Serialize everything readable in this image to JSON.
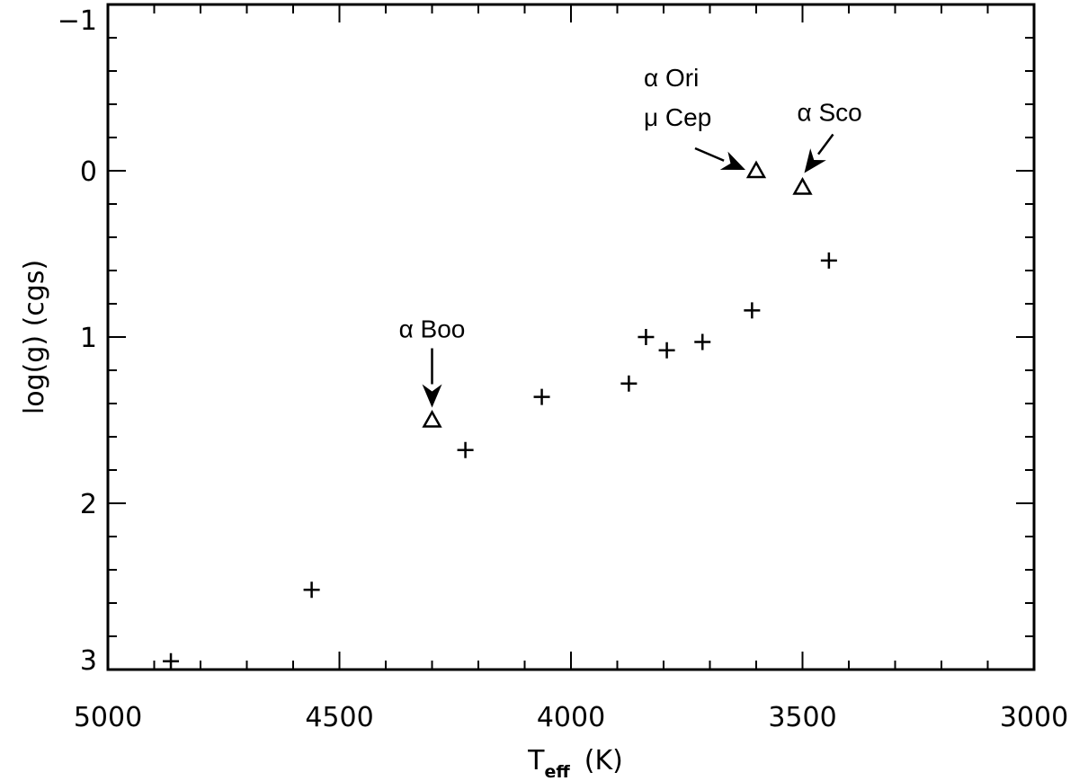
{
  "chart_data": {
    "type": "scatter",
    "xlabel": {
      "main": "T",
      "sub": "eff",
      "unit": "(K)"
    },
    "ylabel": "log(g)  (cgs)",
    "xlim": [
      5000,
      3000
    ],
    "ylim": [
      -1,
      3
    ],
    "y_inverted": true,
    "x_reversed": true,
    "x_ticks": [
      5000,
      4500,
      4000,
      3500,
      3000
    ],
    "x_tick_labels": [
      "5000",
      "4500",
      "4000",
      "3500",
      "3000"
    ],
    "y_ticks": [
      -1,
      0,
      1,
      2,
      3
    ],
    "y_tick_labels": [
      "−1",
      "0",
      "1",
      "2",
      "3"
    ],
    "grid": false,
    "series": [
      {
        "marker": "plus",
        "points": [
          {
            "x": 4864,
            "y": 2.95
          },
          {
            "x": 4560,
            "y": 2.52
          },
          {
            "x": 4228,
            "y": 1.68
          },
          {
            "x": 4063,
            "y": 1.36
          },
          {
            "x": 3875,
            "y": 1.28
          },
          {
            "x": 3838,
            "y": 1.0
          },
          {
            "x": 3793,
            "y": 1.08
          },
          {
            "x": 3716,
            "y": 1.03
          },
          {
            "x": 3609,
            "y": 0.84
          },
          {
            "x": 3443,
            "y": 0.54
          }
        ]
      },
      {
        "marker": "triangle",
        "points": [
          {
            "x": 4300,
            "y": 1.5
          },
          {
            "x": 3600,
            "y": 0.0
          },
          {
            "x": 3500,
            "y": 0.1
          }
        ]
      }
    ],
    "annotations": [
      {
        "lines": [
          "α Boo"
        ],
        "x": 4300,
        "y": 1.5,
        "direction": "down"
      },
      {
        "lines": [
          "α Ori",
          "μ Cep"
        ],
        "x": 3600,
        "y": 0.0,
        "direction": "down-right"
      },
      {
        "lines": [
          "α Sco"
        ],
        "x": 3500,
        "y": 0.1,
        "direction": "down-left"
      }
    ]
  }
}
